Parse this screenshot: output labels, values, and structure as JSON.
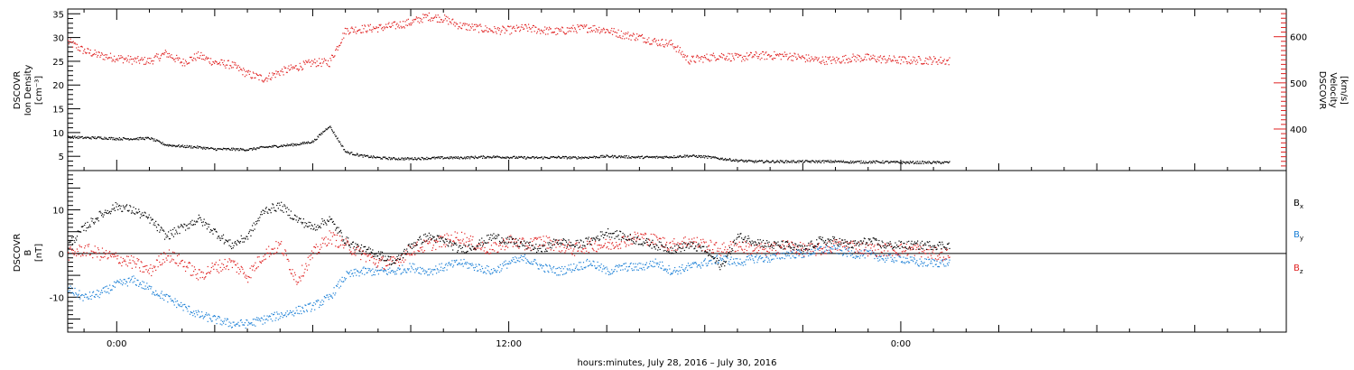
{
  "chart_data": [
    {
      "type": "scatter",
      "panel": "plasma",
      "ylabel_left": [
        "DSCOVR",
        "Ion Density",
        "[cm⁻³]"
      ],
      "ylabel_right": [
        "DSCOVR",
        "Velocity",
        "[km/s]"
      ],
      "ylim_left": [
        2,
        36
      ],
      "ylim_right": [
        310,
        660
      ],
      "yticks_left": [
        "5",
        "10",
        "15",
        "20",
        "25",
        "30",
        "35"
      ],
      "yticks_right": [
        "400",
        "500",
        "600"
      ],
      "colors": {
        "density": "#000000",
        "velocity": "#e02020"
      },
      "series": [
        {
          "key": "velocity",
          "axis": "right",
          "x": [
            -1.5,
            -1.0,
            -0.5,
            0,
            0.5,
            1.0,
            1.5,
            2.0,
            2.5,
            3.0,
            3.5,
            4.0,
            4.5,
            5.0,
            5.5,
            6.0,
            6.5,
            7.0,
            7.5,
            8.0,
            8.5,
            9.0,
            9.5,
            10.0,
            10.5,
            11.0,
            11.5,
            12.0,
            12.5,
            13.0,
            13.5,
            14.0,
            14.5,
            15.0,
            15.5,
            16.0,
            16.5,
            17.0,
            17.5,
            18.0,
            18.5,
            19.0,
            19.5,
            20.0,
            20.5,
            21.0,
            21.5,
            22.0,
            22.5,
            23.0,
            23.5,
            24.0,
            24.5,
            25.0,
            25.5
          ],
          "y": [
            590,
            570,
            560,
            555,
            550,
            548,
            565,
            545,
            560,
            545,
            540,
            520,
            510,
            525,
            535,
            545,
            545,
            615,
            618,
            620,
            625,
            632,
            645,
            640,
            625,
            620,
            615,
            615,
            620,
            615,
            612,
            618,
            620,
            615,
            605,
            600,
            590,
            585,
            550,
            555,
            560,
            555,
            560,
            560,
            560,
            555,
            550,
            550,
            555,
            555,
            552,
            550,
            550,
            550,
            548
          ]
        },
        {
          "key": "density",
          "axis": "left",
          "x": [
            -1.5,
            -1.0,
            -0.5,
            0,
            0.5,
            1.0,
            1.5,
            2.0,
            2.5,
            3.0,
            3.5,
            4.0,
            4.5,
            5.0,
            5.5,
            6.0,
            6.5,
            7.0,
            7.5,
            8.0,
            8.5,
            9.0,
            9.5,
            10.0,
            10.5,
            11.0,
            11.5,
            12.0,
            12.5,
            13.0,
            13.5,
            14.0,
            14.5,
            15.0,
            15.5,
            16.0,
            16.5,
            17.0,
            17.5,
            18.0,
            18.5,
            19.0,
            19.5,
            20.0,
            20.5,
            21.0,
            21.5,
            22.0,
            22.5,
            23.0,
            23.5,
            24.0,
            24.5,
            25.0,
            25.5
          ],
          "y": [
            9.2,
            9.0,
            9.0,
            8.8,
            8.8,
            8.9,
            7.5,
            7.2,
            7.0,
            6.6,
            6.6,
            6.5,
            7.0,
            7.3,
            7.6,
            8.2,
            11.5,
            6.0,
            5.2,
            4.8,
            4.6,
            4.6,
            4.7,
            4.8,
            4.8,
            4.9,
            5.0,
            4.9,
            4.8,
            4.8,
            4.9,
            4.8,
            4.9,
            5.1,
            5.0,
            4.9,
            4.9,
            5.0,
            5.2,
            5.0,
            4.6,
            4.2,
            4.0,
            4.0,
            4.0,
            4.0,
            4.0,
            4.0,
            3.9,
            3.9,
            3.9,
            3.8,
            3.8,
            3.8,
            3.8
          ]
        }
      ]
    },
    {
      "type": "scatter",
      "panel": "magnetic",
      "ylabel_left": [
        "DSCOVR",
        "B",
        "[nT]"
      ],
      "ylim": [
        -18,
        19
      ],
      "yticks": [
        "-10",
        "0",
        "10"
      ],
      "legend_placement": "right",
      "legend": [
        "Bx",
        "By",
        "Bz"
      ],
      "colors": {
        "bx": "#000000",
        "by": "#1a7fd6",
        "bz": "#e02020"
      },
      "series": [
        {
          "key": "bx",
          "name": "Bx",
          "x": [
            -1.5,
            -1.0,
            -0.5,
            0,
            0.5,
            1.0,
            1.5,
            2.0,
            2.5,
            3.0,
            3.5,
            4.0,
            4.5,
            5.0,
            5.5,
            6.0,
            6.5,
            7.0,
            7.5,
            8.0,
            8.5,
            9.0,
            9.5,
            10.0,
            10.5,
            11.0,
            11.5,
            12.0,
            12.5,
            13.0,
            13.5,
            14.0,
            14.5,
            15.0,
            15.5,
            16.0,
            16.5,
            17.0,
            17.5,
            18.0,
            18.5,
            19.0,
            19.5,
            20.0,
            20.5,
            21.0,
            21.5,
            22.0,
            22.5,
            23.0,
            23.5,
            24.0,
            24.5,
            25.0,
            25.5
          ],
          "y": [
            2,
            6,
            9,
            11,
            10,
            8,
            4,
            6,
            8,
            5,
            2,
            4,
            10,
            11,
            8,
            6,
            8,
            3,
            1,
            0,
            -2,
            2,
            4,
            3,
            1,
            2,
            4,
            3,
            2,
            1,
            3,
            2,
            3,
            5,
            4,
            3,
            2,
            1,
            2,
            1,
            -3,
            4,
            3,
            2,
            2,
            1,
            3,
            3,
            2,
            3,
            2,
            2,
            2,
            2,
            2
          ]
        },
        {
          "key": "by",
          "name": "By",
          "x": [
            -1.5,
            -1.0,
            -0.5,
            0,
            0.5,
            1.0,
            1.5,
            2.0,
            2.5,
            3.0,
            3.5,
            4.0,
            4.5,
            5.0,
            5.5,
            6.0,
            6.5,
            7.0,
            7.5,
            8.0,
            8.5,
            9.0,
            9.5,
            10.0,
            10.5,
            11.0,
            11.5,
            12.0,
            12.5,
            13.0,
            13.5,
            14.0,
            14.5,
            15.0,
            15.5,
            16.0,
            16.5,
            17.0,
            17.5,
            18.0,
            18.5,
            19.0,
            19.5,
            20.0,
            20.5,
            21.0,
            21.5,
            22.0,
            22.5,
            23.0,
            23.5,
            24.0,
            24.5,
            25.0,
            25.5
          ],
          "y": [
            -8,
            -10,
            -9,
            -7,
            -6,
            -8,
            -10,
            -12,
            -14,
            -15,
            -16,
            -16,
            -15,
            -14,
            -13,
            -12,
            -10,
            -5,
            -4,
            -4,
            -4,
            -3,
            -4,
            -3,
            -2,
            -3,
            -4,
            -2,
            -1,
            -3,
            -4,
            -3,
            -2,
            -4,
            -3,
            -3,
            -2,
            -4,
            -3,
            -2,
            -1,
            -2,
            -1,
            -1,
            0,
            0,
            1,
            1,
            0,
            0,
            -1,
            -1,
            -2,
            -2,
            -2
          ]
        },
        {
          "key": "bz",
          "name": "Bz",
          "x": [
            -1.5,
            -1.0,
            -0.5,
            0,
            0.5,
            1.0,
            1.5,
            2.0,
            2.5,
            3.0,
            3.5,
            4.0,
            4.5,
            5.0,
            5.5,
            6.0,
            6.5,
            7.0,
            7.5,
            8.0,
            8.5,
            9.0,
            9.5,
            10.0,
            10.5,
            11.0,
            11.5,
            12.0,
            12.5,
            13.0,
            13.5,
            14.0,
            14.5,
            15.0,
            15.5,
            16.0,
            16.5,
            17.0,
            17.5,
            18.0,
            18.5,
            19.0,
            19.5,
            20.0,
            20.5,
            21.0,
            21.5,
            22.0,
            22.5,
            23.0,
            23.5,
            24.0,
            24.5,
            25.0,
            25.5
          ],
          "y": [
            0,
            1,
            0,
            -1,
            -2,
            -4,
            0,
            -2,
            -5,
            -3,
            -2,
            -5,
            0,
            2,
            -6,
            0,
            4,
            2,
            0,
            -2,
            -2,
            1,
            2,
            3,
            4,
            2,
            1,
            3,
            2,
            3,
            2,
            1,
            2,
            2,
            3,
            4,
            3,
            2,
            3,
            2,
            1,
            2,
            1,
            1,
            2,
            1,
            1,
            2,
            2,
            1,
            1,
            1,
            1,
            0,
            0
          ]
        }
      ]
    }
  ],
  "axes": {
    "x_range_hours": [
      -1.5,
      35.8
    ],
    "x_tick_labels": [
      {
        "hour": 0,
        "label": "0:00"
      },
      {
        "hour": 12,
        "label": "12:00"
      },
      {
        "hour": 24,
        "label": "0:00"
      }
    ],
    "xlabel": "hours:minutes, July 28, 2016 – July 30, 2016"
  },
  "legend_labels": {
    "bx": {
      "main": "B",
      "sub": "x"
    },
    "by": {
      "main": "B",
      "sub": "y"
    },
    "bz": {
      "main": "B",
      "sub": "z"
    }
  }
}
